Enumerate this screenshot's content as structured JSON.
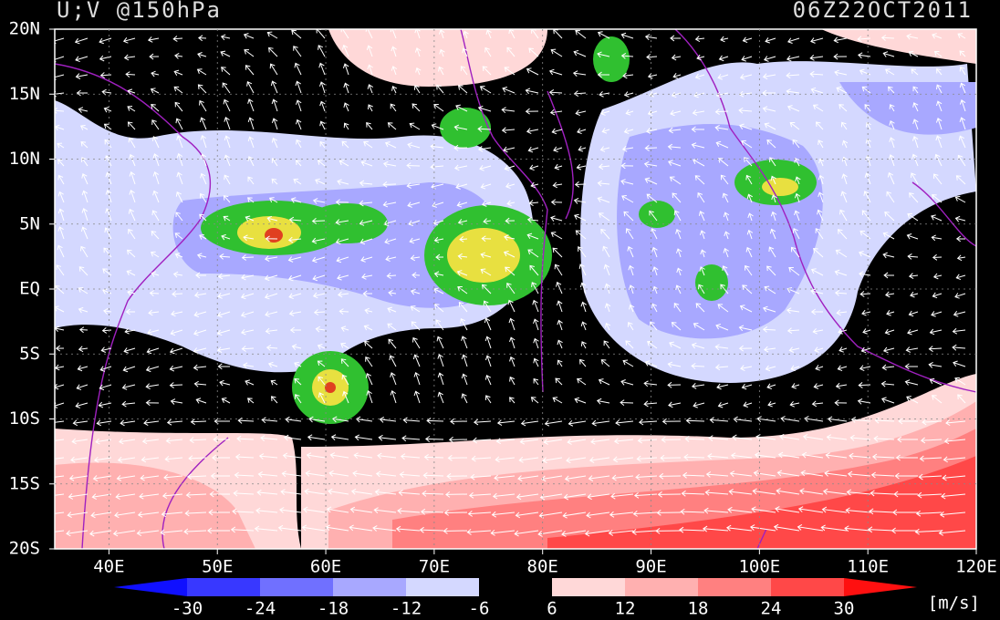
{
  "header": {
    "title": "U;V @150hPa",
    "time": "06Z22OCT2011"
  },
  "map": {
    "lat_labels": [
      "20N",
      "15N",
      "10N",
      "5N",
      "EQ",
      "5S",
      "10S",
      "15S",
      "20S"
    ],
    "lon_labels": [
      "40E",
      "50E",
      "60E",
      "70E",
      "80E",
      "90E",
      "100E",
      "110E",
      "120E"
    ]
  },
  "colorbar": {
    "levels": [
      -30,
      -24,
      -18,
      -12,
      -6,
      6,
      12,
      18,
      24,
      30
    ],
    "colors": [
      "#1010ff",
      "#3838ff",
      "#7070ff",
      "#a8a8ff",
      "#d4d8ff",
      "#000000",
      "#ffd8d8",
      "#ffb0b0",
      "#ff8080",
      "#ff4848",
      "#ff1010"
    ],
    "units": "[m/s]"
  }
}
